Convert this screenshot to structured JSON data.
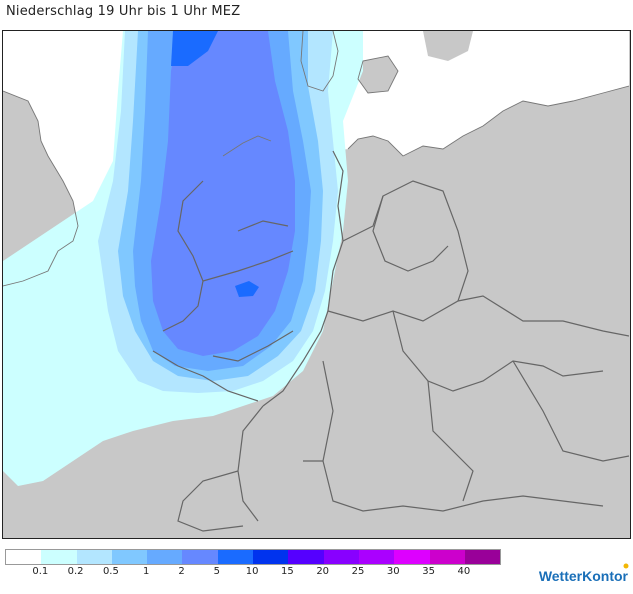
{
  "title": "Niederschlag 19 Uhr bis 1 Uhr MEZ",
  "brand": "WetterKontor",
  "legend": {
    "labels": [
      "0.1",
      "0.2",
      "0.5",
      "1",
      "2",
      "5",
      "10",
      "15",
      "20",
      "25",
      "30",
      "35",
      "40"
    ],
    "colors": [
      "#ffffff",
      "#ccffff",
      "#b3e6ff",
      "#80c8ff",
      "#66aaff",
      "#6688ff",
      "#1a6bff",
      "#0033ee",
      "#5500ff",
      "#8800ff",
      "#aa00ff",
      "#dd00ff",
      "#cc00cc",
      "#990099"
    ]
  },
  "map": {
    "colors": {
      "land": "#c8c8c8",
      "sea": "#ffffff",
      "border": "#666666"
    }
  }
}
